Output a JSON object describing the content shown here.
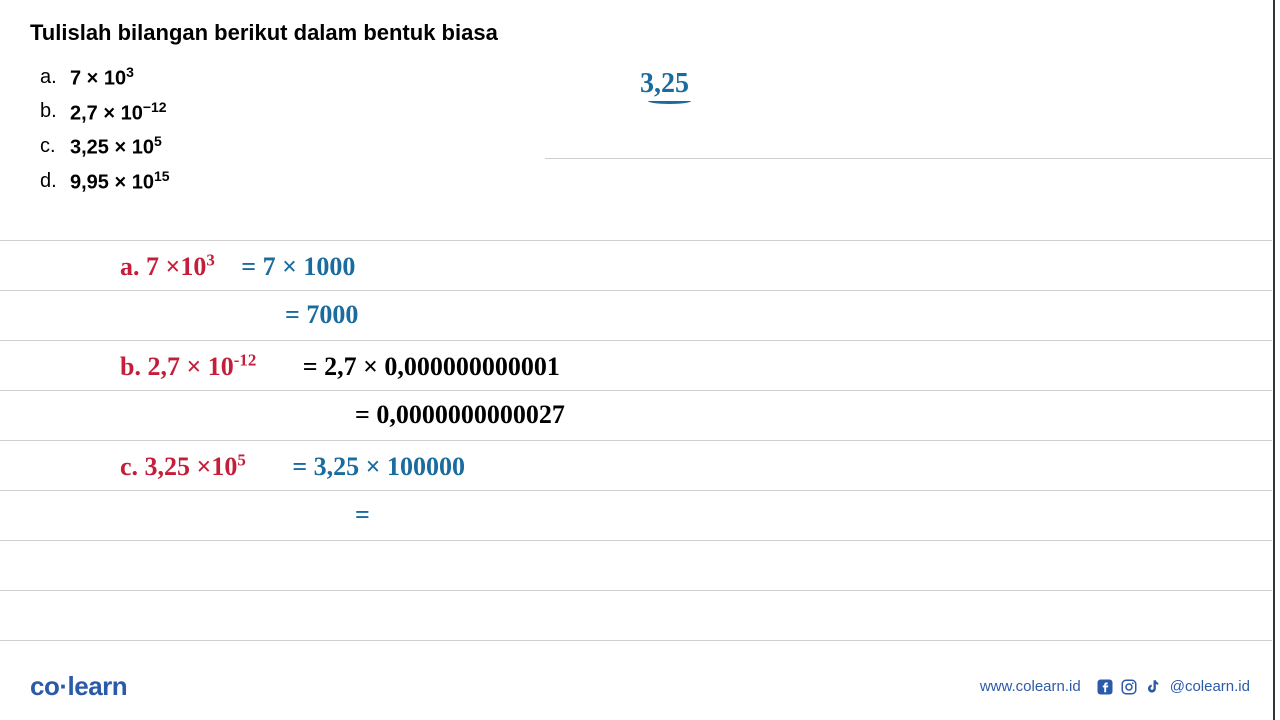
{
  "title": "Tulislah bilangan berikut dalam bentuk biasa",
  "problems": {
    "a": {
      "label": "a.",
      "base": "7 × 10",
      "exp": "3"
    },
    "b": {
      "label": "b.",
      "base": "2,7 × 10",
      "exp": "−12"
    },
    "c": {
      "label": "c.",
      "base": "3,25 × 10",
      "exp": "5"
    },
    "d": {
      "label": "d.",
      "base": "9,95 × 10",
      "exp": "15"
    }
  },
  "top_annotation": "3,25",
  "handwriting": {
    "line_a_red": "a.  7 ×10",
    "line_a_red_exp": "3",
    "line_a_blue": "= 7 × 1000",
    "line_a2_blue": "= 7000",
    "line_b_red": "b.  2,7 × 10",
    "line_b_red_exp": "-12",
    "line_b_black": "=  2,7  ×  0,000000000001",
    "line_b2_black": "=   0,0000000000027",
    "line_c_red": "c.  3,25 ×10",
    "line_c_red_exp": "5",
    "line_c_blue": "= 3,25  ×  100000",
    "line_c2_blue": "="
  },
  "ruled_line_positions": [
    75,
    125,
    175,
    225,
    275,
    325,
    375,
    425,
    475
  ],
  "footer": {
    "logo_co": "co",
    "logo_dot": "·",
    "logo_learn": "learn",
    "url": "www.colearn.id",
    "handle": "@colearn.id"
  },
  "colors": {
    "red": "#c41e3a",
    "blue": "#1a6b9e",
    "black": "#000000",
    "brand": "#2b5ba8",
    "rule": "#d0d0d0"
  }
}
